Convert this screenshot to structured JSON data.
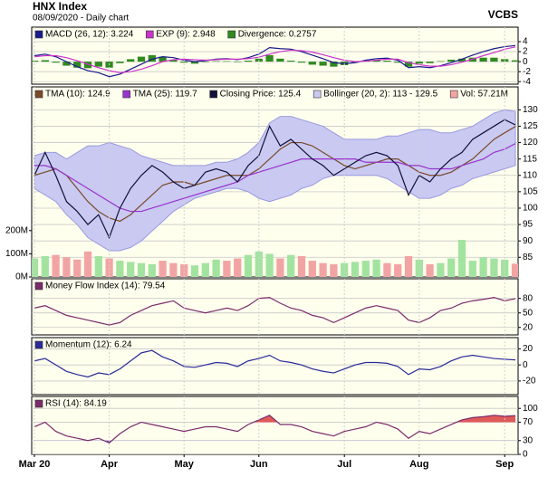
{
  "header": {
    "title": "HNX Index",
    "subtitle": "08/09/2020 - Daily chart",
    "brand": "VCBS"
  },
  "chart_data": [
    {
      "type": "line",
      "ylim": [
        -4.5,
        6.9
      ],
      "yticks": [
        -4,
        -2,
        0,
        2,
        4
      ],
      "grid": true,
      "series": [
        {
          "name": "MACD (26, 12): 3.224",
          "color": "#1a1a8c",
          "type": "line",
          "values": [
            1.2,
            1.5,
            1.0,
            0.0,
            -1.0,
            -1.8,
            -2.2,
            -3.0,
            -2.5,
            -1.5,
            -0.5,
            0.5,
            1.0,
            0.8,
            0.3,
            0.0,
            0.2,
            0.5,
            0.6,
            0.4,
            0.8,
            1.5,
            2.8,
            2.6,
            2.5,
            2.0,
            1.3,
            0.6,
            -0.2,
            -0.4,
            -0.2,
            0.3,
            0.6,
            0.7,
            0.3,
            -1.2,
            -1.0,
            -1.2,
            -0.8,
            -0.2,
            0.5,
            1.3,
            2.0,
            2.6,
            3.0,
            3.224
          ]
        },
        {
          "name": "EXP (9): 2.948",
          "color": "#cc33cc",
          "type": "line",
          "values": [
            1.0,
            1.2,
            1.2,
            0.8,
            0.2,
            -0.5,
            -1.2,
            -1.8,
            -2.2,
            -2.0,
            -1.5,
            -0.8,
            0.0,
            0.4,
            0.5,
            0.4,
            0.3,
            0.4,
            0.5,
            0.5,
            0.6,
            0.9,
            1.5,
            2.0,
            2.3,
            2.2,
            1.9,
            1.4,
            0.8,
            0.3,
            0.0,
            0.1,
            0.3,
            0.5,
            0.5,
            -0.2,
            -0.6,
            -0.9,
            -0.9,
            -0.6,
            -0.1,
            0.5,
            1.2,
            1.8,
            2.5,
            2.948
          ]
        },
        {
          "name": "Divergence: 0.2757",
          "color": "#2f8a1f",
          "type": "bar",
          "values": [
            0.2,
            0.3,
            -0.2,
            -0.8,
            -1.2,
            -1.3,
            -1.0,
            -1.2,
            -0.3,
            0.5,
            1.0,
            1.3,
            1.0,
            0.4,
            -0.2,
            -0.4,
            -0.1,
            0.1,
            0.1,
            -0.1,
            0.2,
            0.6,
            1.3,
            0.6,
            0.2,
            -0.2,
            -0.6,
            -0.8,
            -1.0,
            -0.7,
            -0.2,
            0.2,
            0.3,
            0.2,
            -0.2,
            -1.0,
            -0.4,
            -0.3,
            0.1,
            0.4,
            0.6,
            0.8,
            0.8,
            0.8,
            0.5,
            0.2757
          ]
        }
      ]
    },
    {
      "type": "line",
      "ylim": [
        79,
        137
      ],
      "yticks": [
        85,
        90,
        95,
        100,
        105,
        110,
        115,
        120,
        125,
        130
      ],
      "grid": true,
      "y2lim": [
        0,
        820
      ],
      "y2ticks": [
        {
          "value": 0,
          "label": "0M"
        },
        {
          "value": 100,
          "label": "100M"
        },
        {
          "value": 200,
          "label": "200M"
        }
      ],
      "series": [
        {
          "name": "TMA (10): 124.9",
          "color": "#7a4a2a",
          "type": "line",
          "values": [
            110,
            111,
            112,
            110,
            106,
            102,
            99,
            97,
            96,
            98,
            101,
            104,
            107,
            108,
            108,
            107,
            108,
            109,
            110,
            110,
            110,
            112,
            115,
            118,
            120,
            120,
            119,
            117,
            115,
            113,
            112,
            113,
            114,
            115,
            115,
            113,
            111,
            110,
            110,
            111,
            113,
            115,
            118,
            121,
            123,
            124.9
          ]
        },
        {
          "name": "TMA (25): 119.7",
          "color": "#9933cc",
          "type": "line",
          "values": [
            113,
            113,
            112,
            110,
            108,
            106,
            104,
            102,
            100,
            99,
            99,
            100,
            101,
            102,
            103,
            104,
            105,
            106,
            107,
            108,
            110,
            111,
            112,
            113,
            114,
            115,
            115,
            115,
            115,
            115,
            115,
            114,
            114,
            114,
            114,
            113,
            113,
            112,
            112,
            112,
            113,
            114,
            115,
            117,
            118,
            119.7
          ]
        },
        {
          "name": "Closing Price: 125.4",
          "color": "#10103a",
          "type": "line",
          "values": [
            110,
            117,
            110,
            102,
            99,
            95,
            98,
            91,
            100,
            106,
            110,
            113,
            111,
            108,
            106,
            107,
            111,
            112,
            111,
            108,
            113,
            116,
            125,
            119,
            121,
            118,
            115,
            113,
            110,
            112,
            114,
            116,
            117,
            116,
            113,
            104,
            110,
            108,
            112,
            115,
            117,
            121,
            123,
            125,
            127,
            125.4
          ]
        },
        {
          "name": "Bollinger (20, 2): 113 - 129.5",
          "color": "#c9c9f2",
          "edge_color": "#9a9ae0",
          "type": "band",
          "upper": [
            116,
            117,
            117,
            115,
            117,
            119,
            119,
            120,
            119,
            118,
            116,
            115,
            114,
            113,
            113,
            113,
            113,
            114,
            114,
            115,
            117,
            120,
            126,
            128,
            128,
            127,
            126,
            125,
            123,
            121,
            121,
            121,
            121,
            122,
            122,
            123,
            124,
            124,
            123,
            123,
            124,
            125,
            127,
            129,
            130,
            129.5
          ],
          "lower": [
            106,
            104,
            102,
            98,
            95,
            91,
            89,
            87,
            87,
            88,
            90,
            93,
            96,
            99,
            101,
            103,
            104,
            105,
            106,
            106,
            105,
            103,
            102,
            103,
            104,
            106,
            107,
            109,
            110,
            110,
            110,
            110,
            110,
            109,
            107,
            105,
            103,
            103,
            104,
            106,
            107,
            109,
            110,
            111,
            112,
            113
          ]
        },
        {
          "name": "Vol: 57.21M",
          "color": "#f2a4a4",
          "up_color": "#a3e3a0",
          "type": "bar",
          "axis": "y2",
          "values": [
            80,
            90,
            95,
            85,
            75,
            110,
            90,
            80,
            70,
            65,
            60,
            55,
            70,
            60,
            55,
            50,
            60,
            75,
            70,
            80,
            95,
            110,
            100,
            80,
            95,
            90,
            70,
            60,
            55,
            60,
            65,
            70,
            75,
            60,
            55,
            90,
            75,
            55,
            60,
            80,
            160,
            70,
            85,
            80,
            75,
            57.21
          ]
        }
      ]
    },
    {
      "type": "line",
      "ylim": [
        4.5,
        120.6
      ],
      "yticks": [
        20,
        50,
        80
      ],
      "grid": true,
      "series": [
        {
          "name": "Money Flow Index (14): 79.54",
          "color": "#7a2a6a",
          "type": "line",
          "values": [
            60,
            65,
            55,
            45,
            40,
            35,
            30,
            25,
            30,
            45,
            55,
            65,
            70,
            75,
            60,
            55,
            50,
            55,
            60,
            55,
            65,
            80,
            82,
            70,
            60,
            55,
            45,
            40,
            30,
            40,
            50,
            60,
            65,
            60,
            55,
            35,
            30,
            40,
            55,
            60,
            70,
            75,
            78,
            82,
            75,
            79.54
          ]
        }
      ]
    },
    {
      "type": "line",
      "ylim": [
        -37,
        34
      ],
      "yticks": [
        -20,
        0,
        20
      ],
      "grid": true,
      "series": [
        {
          "name": "Momentum (12): 6.24",
          "color": "#2a2a9a",
          "type": "line",
          "values": [
            5,
            8,
            0,
            -8,
            -12,
            -15,
            -10,
            -12,
            -5,
            5,
            15,
            18,
            10,
            5,
            -2,
            -3,
            0,
            3,
            2,
            -2,
            5,
            8,
            12,
            5,
            3,
            0,
            -5,
            -8,
            -10,
            -5,
            0,
            3,
            3,
            2,
            -2,
            -12,
            -5,
            -6,
            -2,
            5,
            10,
            12,
            10,
            8,
            7,
            6.24
          ]
        }
      ]
    },
    {
      "type": "line",
      "ylim": [
        0,
        126
      ],
      "yticks": [
        0,
        30,
        70,
        100
      ],
      "grid": true,
      "overbought_color": "#e05a5a",
      "oversold_color": "#6a5ad0",
      "categories": [
        "Mar 20",
        null,
        null,
        null,
        null,
        null,
        null,
        "Apr",
        null,
        null,
        null,
        null,
        null,
        null,
        "May",
        null,
        null,
        null,
        null,
        null,
        null,
        "Jun",
        null,
        null,
        null,
        null,
        null,
        null,
        null,
        "Jul",
        null,
        null,
        null,
        null,
        null,
        null,
        "Aug",
        null,
        null,
        null,
        null,
        null,
        null,
        null,
        "Sep",
        null
      ],
      "series": [
        {
          "name": "RSI (14): 84.19",
          "color": "#7a2a6a",
          "type": "line",
          "values": [
            60,
            70,
            50,
            40,
            35,
            30,
            35,
            25,
            45,
            60,
            70,
            65,
            60,
            55,
            50,
            55,
            60,
            60,
            55,
            50,
            65,
            75,
            85,
            65,
            65,
            60,
            50,
            45,
            40,
            50,
            55,
            60,
            70,
            65,
            55,
            35,
            50,
            45,
            55,
            65,
            75,
            80,
            82,
            85,
            83,
            84.19
          ]
        }
      ]
    }
  ]
}
